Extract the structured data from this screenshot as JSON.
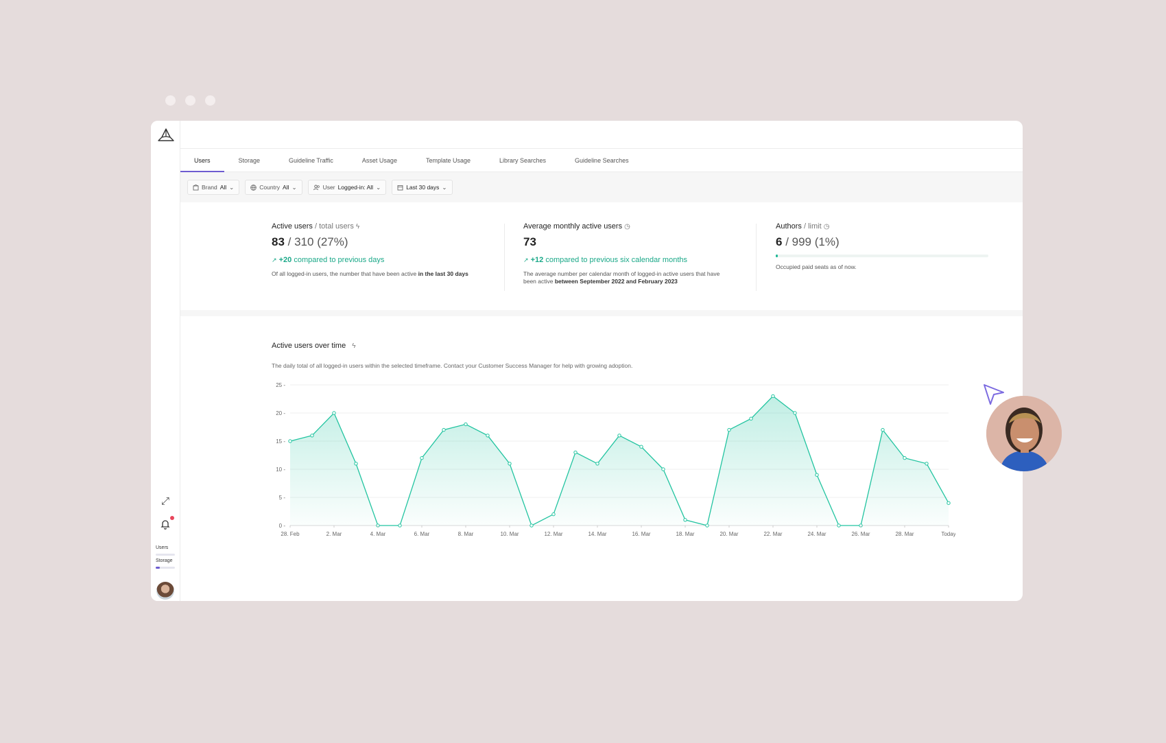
{
  "nav": {
    "tabs": [
      "Users",
      "Storage",
      "Guideline Traffic",
      "Asset Usage",
      "Template Usage",
      "Library Searches",
      "Guideline Searches"
    ],
    "active_tab": "Users"
  },
  "filters": [
    {
      "icon": "building-icon",
      "label": "Brand",
      "value": "All"
    },
    {
      "icon": "globe-icon",
      "label": "Country",
      "value": "All"
    },
    {
      "icon": "users-icon",
      "label": "User",
      "value": "Logged-in: All"
    },
    {
      "icon": "calendar-icon",
      "label": "",
      "value": "Last 30 days"
    }
  ],
  "stats": {
    "active": {
      "title": "Active users",
      "subtitle": "/ total users",
      "value": "83",
      "value_rest": "/ 310 (27%)",
      "delta": "+20",
      "delta_text": "compared to previous days",
      "desc": "Of all logged-in users, the number that have been active",
      "desc_bold": "in the last 30 days"
    },
    "monthly": {
      "title": "Average monthly active users",
      "value": "73",
      "delta": "+12",
      "delta_text": "compared to previous six calendar months",
      "desc": "The average number per calendar month of logged-in active users that have been active",
      "desc_bold": "between September 2022 and February 2023"
    },
    "authors": {
      "title": "Authors",
      "subtitle": "/ limit",
      "value": "6",
      "value_rest": "/ 999 (1%)",
      "progress": 0.01,
      "desc": "Occupied paid seats as of now."
    }
  },
  "sidebar": {
    "usage": [
      {
        "label": "Users",
        "fill": 0.0
      },
      {
        "label": "Storage",
        "fill": 0.2
      }
    ]
  },
  "chart_section": {
    "title": "Active users over time",
    "desc": "The daily total of all logged-in users within the selected timeframe. Contact your Customer Success Manager for help with growing adoption."
  },
  "colors": {
    "accent": "#6d5bd0",
    "positive": "#1aa888",
    "series": "#22c4a0"
  },
  "chart_data": {
    "type": "area",
    "x": [
      "28. Feb",
      "1. Mar",
      "2. Mar",
      "3. Mar",
      "4. Mar",
      "5. Mar",
      "6. Mar",
      "7. Mar",
      "8. Mar",
      "9. Mar",
      "10. Mar",
      "11. Mar",
      "12. Mar",
      "13. Mar",
      "14. Mar",
      "15. Mar",
      "16. Mar",
      "17. Mar",
      "18. Mar",
      "19. Mar",
      "20. Mar",
      "21. Mar",
      "22. Mar",
      "23. Mar",
      "24. Mar",
      "25. Mar",
      "26. Mar",
      "27. Mar",
      "28. Mar",
      "29. Mar",
      "Today"
    ],
    "values": [
      15,
      16,
      20,
      11,
      0,
      0,
      12,
      17,
      18,
      16,
      11,
      0,
      2,
      13,
      11,
      16,
      14,
      10,
      1,
      0,
      17,
      19,
      23,
      20,
      9,
      0,
      0,
      17,
      12,
      11,
      4
    ],
    "xticks": [
      "28. Feb",
      "2. Mar",
      "4. Mar",
      "6. Mar",
      "8. Mar",
      "10. Mar",
      "12. Mar",
      "14. Mar",
      "16. Mar",
      "18. Mar",
      "20. Mar",
      "22. Mar",
      "24. Mar",
      "26. Mar",
      "28. Mar",
      "Today"
    ],
    "yticks": [
      0,
      5,
      10,
      15,
      20,
      25
    ],
    "ylim": [
      0,
      25
    ],
    "grid": true
  }
}
